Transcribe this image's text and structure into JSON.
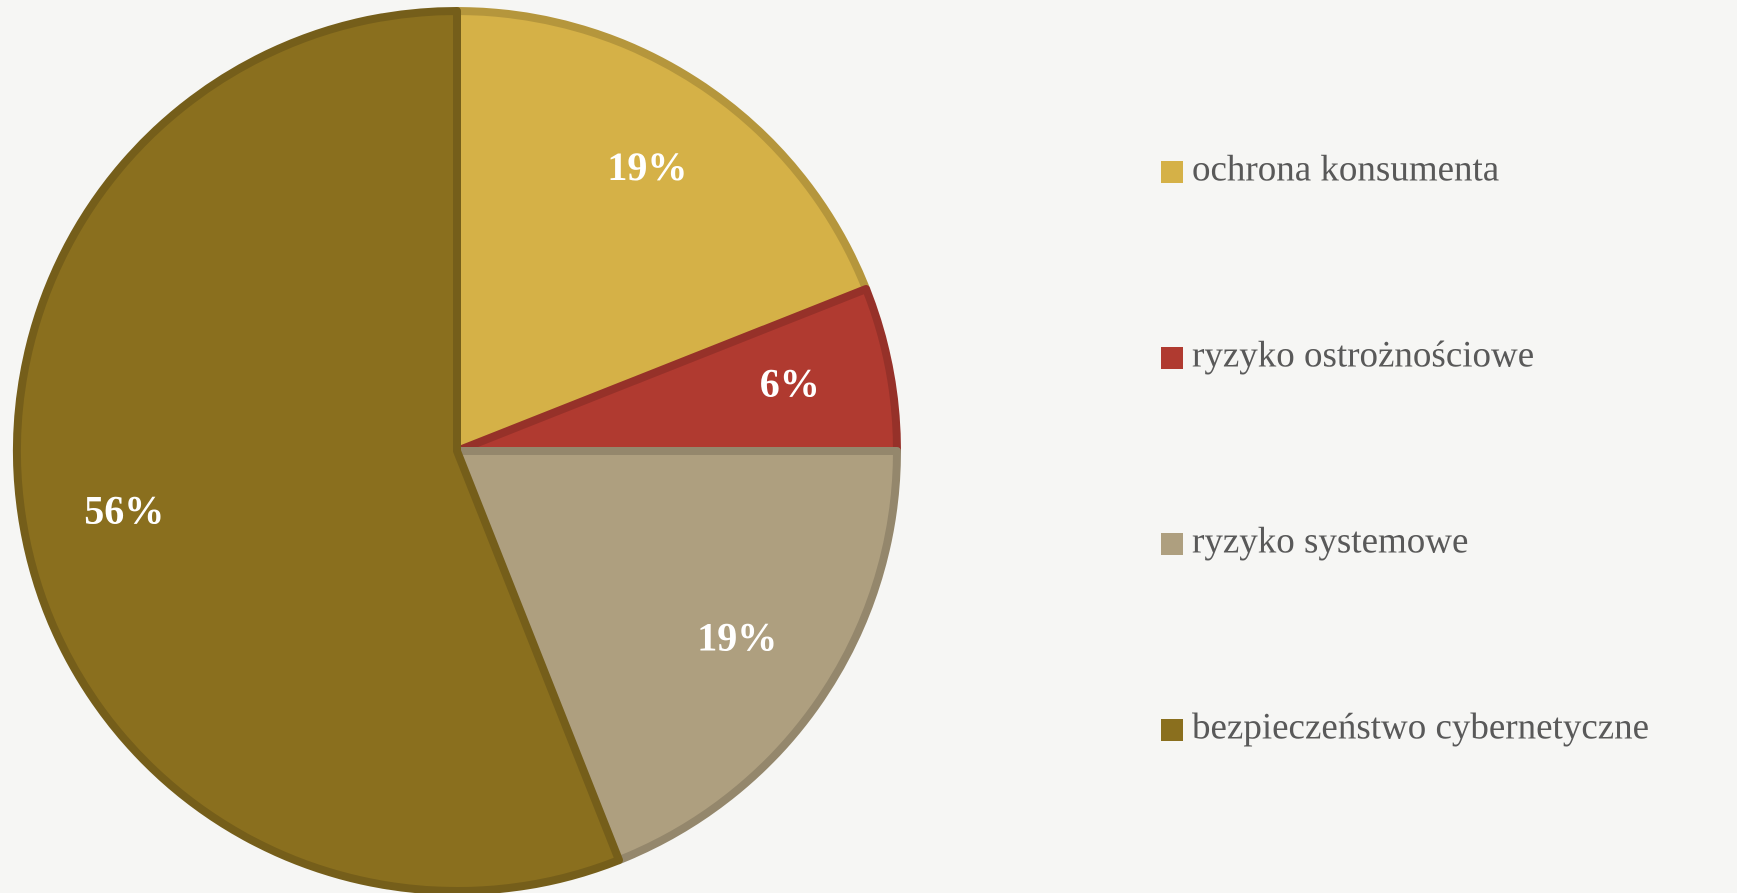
{
  "chart_data": {
    "type": "pie",
    "categories": [
      "ochrona konsumenta",
      "ryzyko ostrożnościowe",
      "ryzyko systemowe",
      "bezpieczeństwo cybernetyczne"
    ],
    "values": [
      19,
      6,
      19,
      56
    ],
    "value_labels": [
      "19%",
      "6%",
      "19%",
      "56%"
    ],
    "colors": [
      "#d5b147",
      "#b03a30",
      "#ae9f7f",
      "#8a6f1e"
    ],
    "legend": "right"
  }
}
